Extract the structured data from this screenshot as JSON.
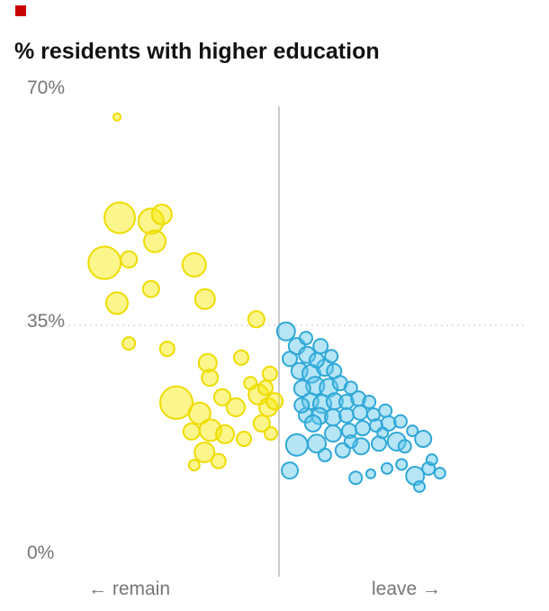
{
  "header": {
    "title": "% residents with higher education"
  },
  "colors": {
    "remain_fill": "#f7e800",
    "remain_stroke": "#eedc00",
    "leave_fill": "#5ec6ea",
    "leave_stroke": "#2fa8d8",
    "axis": "#999999",
    "grid": "#c8c8c8",
    "text": "#767676",
    "title": "#121212",
    "brand": "#c70000"
  },
  "chart_data": {
    "type": "scatter",
    "title": "% residents with higher education",
    "ylabel": "% residents with higher education",
    "ylim": [
      0,
      70
    ],
    "y_axis": {
      "top": "70%",
      "mid": "35%",
      "bottom": "0%"
    },
    "y_gridline_value": 35,
    "xlabel_left": "← remain",
    "xlabel_right": "leave →",
    "x_axis_note": "unlabeled axis: distance left/right of centre line = strength of remain/leave result; bubble size = relative size",
    "legend_position": "none",
    "grid": "single dotted line at 35%",
    "series": [
      {
        "name": "remain",
        "fill": "#f7e800",
        "stroke": "#eedc00",
        "points": [
          [
            -30,
            66,
            4
          ],
          [
            -29.5,
            51,
            17
          ],
          [
            -23.7,
            50.5,
            14
          ],
          [
            -21.7,
            51.5,
            11
          ],
          [
            -23,
            47.5,
            12
          ],
          [
            -32.3,
            44.3,
            18
          ],
          [
            -27.8,
            44.8,
            9
          ],
          [
            -15.7,
            44,
            13
          ],
          [
            -30,
            38.3,
            12
          ],
          [
            -23.7,
            40.4,
            9
          ],
          [
            -13.7,
            38.9,
            11
          ],
          [
            -4.2,
            35.9,
            9
          ],
          [
            -27.8,
            32.3,
            7
          ],
          [
            -20.7,
            31.5,
            8
          ],
          [
            -13.2,
            29.4,
            10
          ],
          [
            -12.8,
            27.2,
            9
          ],
          [
            -7,
            30.2,
            8
          ],
          [
            -19,
            23.5,
            18
          ],
          [
            -14.7,
            21.9,
            12
          ],
          [
            -10.5,
            24.3,
            9
          ],
          [
            -8,
            22.8,
            10
          ],
          [
            -3.8,
            24.7,
            11
          ],
          [
            -2,
            22.8,
            10
          ],
          [
            -16.2,
            19.2,
            9
          ],
          [
            -12.7,
            19.4,
            12
          ],
          [
            -10,
            18.8,
            10
          ],
          [
            -13.8,
            16.1,
            11
          ],
          [
            -11.2,
            14.8,
            8
          ],
          [
            -6.5,
            18.1,
            8
          ],
          [
            -3.2,
            20.4,
            9
          ],
          [
            -1.5,
            18.9,
            7
          ],
          [
            -15.7,
            14.2,
            6
          ],
          [
            -2.5,
            25.7,
            8
          ],
          [
            -5.3,
            26.4,
            7
          ],
          [
            -0.8,
            23.7,
            9
          ],
          [
            -1.7,
            27.8,
            8
          ]
        ]
      },
      {
        "name": "leave",
        "fill": "#5ec6ea",
        "stroke": "#2fa8d8",
        "points": [
          [
            1.3,
            34.1,
            10
          ],
          [
            3.3,
            31.9,
            9
          ],
          [
            2,
            30,
            8
          ],
          [
            5.2,
            30.6,
            9
          ],
          [
            7.7,
            31.9,
            8
          ],
          [
            3.8,
            28.2,
            9
          ],
          [
            6,
            27.8,
            10
          ],
          [
            8.5,
            28.7,
            9
          ],
          [
            10.2,
            28.2,
            8
          ],
          [
            6.7,
            26,
            10
          ],
          [
            4.3,
            25.6,
            9
          ],
          [
            9.2,
            25.7,
            10
          ],
          [
            11.3,
            26.4,
            8
          ],
          [
            13.3,
            25.7,
            7
          ],
          [
            5.8,
            23.7,
            9
          ],
          [
            8,
            23.3,
            10
          ],
          [
            10.3,
            23.7,
            9
          ],
          [
            12.5,
            23.6,
            8
          ],
          [
            14.7,
            24.1,
            8
          ],
          [
            16.7,
            23.6,
            7
          ],
          [
            5,
            21.6,
            8
          ],
          [
            7.5,
            21.5,
            9
          ],
          [
            10,
            21.3,
            9
          ],
          [
            12.5,
            21.6,
            8
          ],
          [
            15,
            22,
            8
          ],
          [
            17.5,
            21.7,
            7
          ],
          [
            19.7,
            22.3,
            7
          ],
          [
            3.3,
            17.2,
            12
          ],
          [
            7,
            17.4,
            10
          ],
          [
            10,
            18.9,
            9
          ],
          [
            13,
            19.3,
            8
          ],
          [
            15.5,
            19.7,
            8
          ],
          [
            18,
            20.1,
            7
          ],
          [
            20.3,
            20.4,
            8
          ],
          [
            22.5,
            20.7,
            7
          ],
          [
            24.7,
            19.3,
            6
          ],
          [
            26.7,
            18.1,
            9
          ],
          [
            21.8,
            17.7,
            10
          ],
          [
            18.5,
            17.4,
            8
          ],
          [
            15.2,
            17,
            9
          ],
          [
            11.8,
            16.4,
            8
          ],
          [
            8.5,
            15.7,
            7
          ],
          [
            2,
            13.4,
            9
          ],
          [
            14.2,
            12.3,
            7
          ],
          [
            17,
            12.9,
            5
          ],
          [
            20,
            13.7,
            6
          ],
          [
            22.7,
            14.3,
            6
          ],
          [
            25.2,
            12.6,
            10
          ],
          [
            27.7,
            13.7,
            7
          ],
          [
            29.8,
            13,
            6
          ],
          [
            26,
            11,
            6
          ],
          [
            5,
            33.1,
            7
          ],
          [
            7,
            29.8,
            8
          ],
          [
            9.7,
            30.4,
            7
          ],
          [
            4.2,
            23.1,
            8
          ],
          [
            6.3,
            20.4,
            9
          ],
          [
            13.3,
            17.7,
            7
          ],
          [
            19.2,
            19,
            6
          ],
          [
            23.3,
            17,
            7
          ],
          [
            28.3,
            15,
            6
          ]
        ]
      }
    ]
  }
}
